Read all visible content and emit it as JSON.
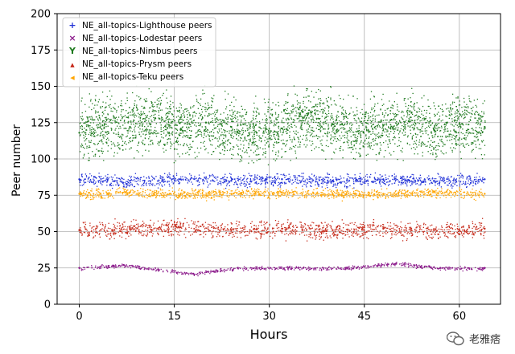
{
  "chart_data": {
    "type": "scatter",
    "xlabel": "Hours",
    "ylabel": "Peer number",
    "xlim": [
      -3.5,
      66.5
    ],
    "ylim": [
      0,
      200
    ],
    "xticks": [
      0,
      15,
      30,
      45,
      60
    ],
    "yticks": [
      0,
      25,
      50,
      75,
      100,
      125,
      150,
      175,
      200
    ],
    "grid": true,
    "legend_position": "top-left",
    "series": [
      {
        "name": "NE_all-topics-Lighthouse peers",
        "marker": "+",
        "color": "#1f2fd6",
        "x": [
          0,
          8,
          16,
          24,
          32,
          40,
          48,
          56,
          64
        ],
        "y": [
          86,
          85,
          86,
          85,
          86,
          85,
          86,
          85,
          86
        ]
      },
      {
        "name": "NE_all-topics-Lodestar peers",
        "marker": "x",
        "color": "#8b1a8b",
        "x": [
          0,
          7,
          18,
          25,
          33,
          42,
          50,
          57,
          64
        ],
        "y": [
          25,
          27,
          21,
          25,
          25,
          25,
          28,
          25,
          25
        ]
      },
      {
        "name": "NE_all-topics-Nimbus peers",
        "marker": "Y",
        "color": "#1f7a1f",
        "x": [
          0,
          4,
          8,
          12,
          16,
          20,
          24,
          28,
          32,
          36,
          40,
          44,
          48,
          52,
          56,
          60,
          64
        ],
        "y": [
          118,
          124,
          122,
          128,
          120,
          125,
          122,
          118,
          121,
          130,
          124,
          119,
          123,
          126,
          120,
          124,
          122
        ]
      },
      {
        "name": "NE_all-topics-Prysm peers",
        "marker": "^",
        "color": "#c62a1a",
        "x": [
          0,
          8,
          16,
          24,
          32,
          40,
          48,
          56,
          64
        ],
        "y": [
          51,
          52,
          53,
          51,
          52,
          51,
          52,
          51,
          52
        ]
      },
      {
        "name": "NE_all-topics-Teku peers",
        "marker": "<",
        "color": "#ffa500",
        "x": [
          0,
          8,
          16,
          24,
          32,
          40,
          48,
          56,
          64
        ],
        "y": [
          76,
          77,
          76,
          76,
          77,
          76,
          76,
          77,
          76
        ]
      }
    ]
  },
  "watermark": {
    "text": "老雅痞",
    "icon": "wechat-icon"
  }
}
